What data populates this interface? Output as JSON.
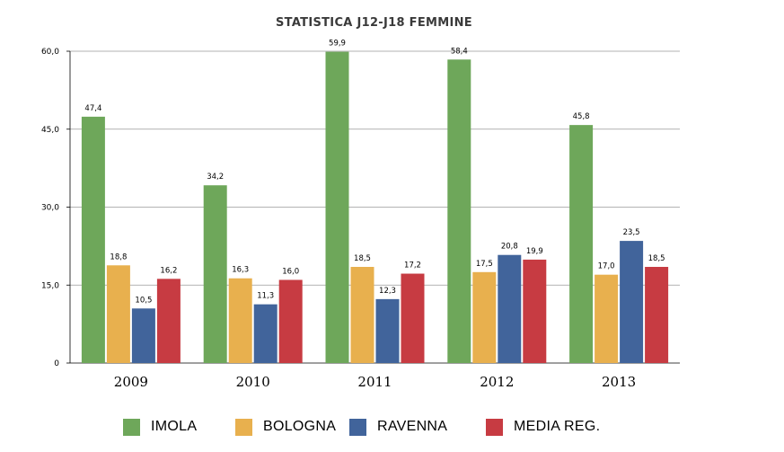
{
  "chart_data": {
    "type": "bar",
    "title": "STATISTICA J12-J18 FEMMINE",
    "xlabel": "",
    "ylabel": "",
    "ylim": [
      0,
      60
    ],
    "yticks": [
      "0",
      "15,0",
      "30,0",
      "45,0",
      "60,0"
    ],
    "grid": true,
    "legend_position": "bottom",
    "categories": [
      "2009",
      "2010",
      "2011",
      "2012",
      "2013"
    ],
    "series": [
      {
        "name": "IMOLA",
        "color": "#6ea75a",
        "values": [
          47.4,
          34.2,
          59.9,
          58.4,
          45.8
        ],
        "labels": [
          "47,4",
          "34,2",
          "59,9",
          "58,4",
          "45,8"
        ]
      },
      {
        "name": "BOLOGNA",
        "color": "#e8b04e",
        "values": [
          18.8,
          16.3,
          18.5,
          17.5,
          17.0
        ],
        "labels": [
          "18,8",
          "16,3",
          "18,5",
          "17,5",
          "17,0"
        ]
      },
      {
        "name": "RAVENNA",
        "color": "#41649b",
        "values": [
          10.5,
          11.3,
          12.3,
          20.8,
          23.5
        ],
        "labels": [
          "10,5",
          "11,3",
          "12,3",
          "20,8",
          "23,5"
        ]
      },
      {
        "name": "MEDIA REG.",
        "color": "#c73b42",
        "values": [
          16.2,
          16.0,
          17.2,
          19.9,
          18.5
        ],
        "labels": [
          "16,2",
          "16,0",
          "17,2",
          "19,9",
          "18,5"
        ]
      }
    ]
  }
}
